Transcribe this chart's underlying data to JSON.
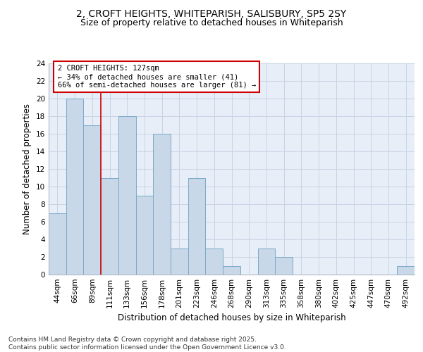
{
  "title_line1": "2, CROFT HEIGHTS, WHITEPARISH, SALISBURY, SP5 2SY",
  "title_line2": "Size of property relative to detached houses in Whiteparish",
  "xlabel": "Distribution of detached houses by size in Whiteparish",
  "ylabel": "Number of detached properties",
  "categories": [
    "44sqm",
    "66sqm",
    "89sqm",
    "111sqm",
    "133sqm",
    "156sqm",
    "178sqm",
    "201sqm",
    "223sqm",
    "246sqm",
    "268sqm",
    "290sqm",
    "313sqm",
    "335sqm",
    "358sqm",
    "380sqm",
    "402sqm",
    "425sqm",
    "447sqm",
    "470sqm",
    "492sqm"
  ],
  "values": [
    7,
    20,
    17,
    11,
    18,
    9,
    16,
    3,
    11,
    3,
    1,
    0,
    3,
    2,
    0,
    0,
    0,
    0,
    0,
    0,
    1
  ],
  "bar_color": "#c8d8e8",
  "bar_edge_color": "#7aaac8",
  "property_line_x": 2.5,
  "annotation_text": "2 CROFT HEIGHTS: 127sqm\n← 34% of detached houses are smaller (41)\n66% of semi-detached houses are larger (81) →",
  "annotation_box_color": "#ffffff",
  "annotation_box_edge_color": "#cc0000",
  "property_line_color": "#cc0000",
  "ylim": [
    0,
    24
  ],
  "yticks": [
    0,
    2,
    4,
    6,
    8,
    10,
    12,
    14,
    16,
    18,
    20,
    22,
    24
  ],
  "grid_color": "#c8d4e4",
  "background_color": "#e8eef8",
  "footer_text": "Contains HM Land Registry data © Crown copyright and database right 2025.\nContains public sector information licensed under the Open Government Licence v3.0.",
  "title_fontsize": 10,
  "subtitle_fontsize": 9,
  "axis_label_fontsize": 8.5,
  "tick_fontsize": 7.5,
  "annotation_fontsize": 7.5,
  "footer_fontsize": 6.5
}
